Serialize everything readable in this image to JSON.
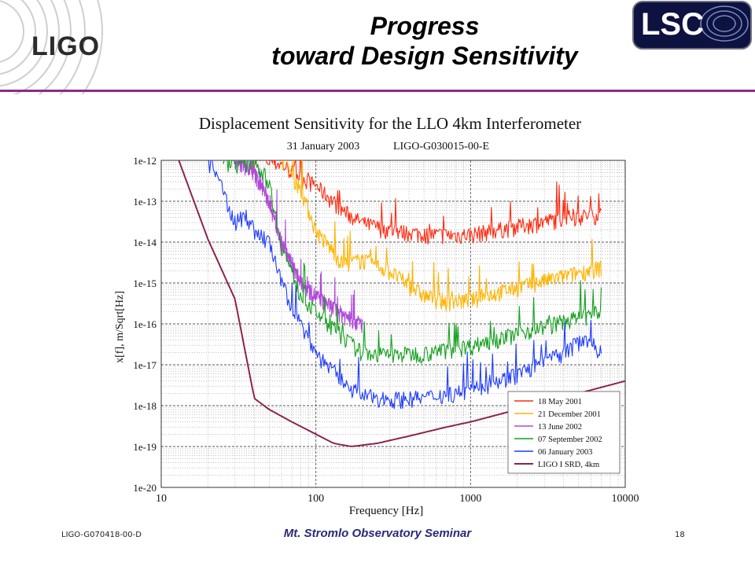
{
  "header": {
    "logo_left": "LIGO",
    "logo_right": "LSC",
    "title_line1": "Progress",
    "title_line2": "toward Design Sensitivity"
  },
  "footer": {
    "doc_id": "LIGO-G070418-00-D",
    "seminar": "Mt. Stromlo Observatory Seminar",
    "page": "18"
  },
  "colors": {
    "title_rule": "#8d2a8d",
    "lsc_bg": "#0d1240"
  },
  "chart_data": {
    "type": "line",
    "title": "Displacement Sensitivity for the LLO 4km Interferometer",
    "subtitle_date": "31 January 2003",
    "subtitle_id": "LIGO-G030015-00-E",
    "xlabel": "Frequency [Hz]",
    "ylabel": "x[f], m/Sqrt[Hz]",
    "x_scale": "log",
    "y_scale": "log",
    "xlim": [
      10,
      10000
    ],
    "ylim": [
      1e-20,
      1e-12
    ],
    "x_ticks": [
      "10",
      "100",
      "1000",
      "10000"
    ],
    "y_ticks": [
      "1e-12",
      "1e-13",
      "1e-14",
      "1e-15",
      "1e-16",
      "1e-17",
      "1e-18",
      "1e-19",
      "1e-20"
    ],
    "grid": true,
    "legend_position": "bottom-right",
    "series": [
      {
        "name": "18 May 2001",
        "color": "#ff2a10",
        "noisy": true,
        "x": [
          40,
          60,
          80,
          100,
          150,
          200,
          300,
          500,
          800,
          1000,
          2000,
          4000,
          7000
        ],
        "y": [
          1.2e-12,
          8e-13,
          4e-13,
          2.5e-13,
          6e-14,
          3e-14,
          2e-14,
          1.6e-14,
          1.5e-14,
          1.6e-14,
          2.5e-14,
          4e-14,
          5e-14
        ]
      },
      {
        "name": "21 December 2001",
        "color": "#ffb400",
        "noisy": true,
        "x": [
          60,
          80,
          100,
          150,
          200,
          300,
          500,
          700,
          1000,
          2000,
          4000,
          7000
        ],
        "y": [
          1.2e-12,
          2e-13,
          2e-14,
          3e-15,
          3.8e-15,
          2e-15,
          5e-16,
          3.6e-16,
          4e-16,
          8e-16,
          1.5e-15,
          2.5e-15
        ]
      },
      {
        "name": "13 June 2002",
        "color": "#b04ad8",
        "noisy": true,
        "x": [
          30,
          40,
          50,
          60,
          80,
          100,
          130,
          160,
          200
        ],
        "y": [
          1e-12,
          5e-13,
          1e-13,
          1e-14,
          1e-15,
          5e-16,
          2.5e-16,
          1.5e-16,
          1e-16
        ]
      },
      {
        "name": "07 September 2002",
        "color": "#14a01e",
        "noisy": true,
        "x": [
          25,
          35,
          40,
          50,
          60,
          80,
          100,
          150,
          200,
          300,
          500,
          1000,
          2000,
          4000,
          7000
        ],
        "y": [
          1e-12,
          8e-13,
          1e-12,
          3e-13,
          8e-15,
          5e-16,
          2e-16,
          5e-17,
          2e-17,
          1.8e-17,
          2e-17,
          3e-17,
          6e-17,
          1.2e-16,
          2e-16
        ]
      },
      {
        "name": "06 January 2003",
        "color": "#1e3cff",
        "noisy": true,
        "x": [
          20,
          25,
          30,
          35,
          40,
          50,
          60,
          80,
          100,
          150,
          200,
          300,
          500,
          1000,
          2000,
          4000,
          5500,
          7000
        ],
        "y": [
          1e-12,
          2e-13,
          3e-14,
          5e-14,
          2e-14,
          1e-14,
          1e-15,
          1e-16,
          2e-17,
          4e-18,
          1.8e-18,
          1.5e-18,
          1.6e-18,
          2.5e-18,
          6e-18,
          2e-17,
          5e-17,
          2e-17
        ]
      },
      {
        "name": "LIGO I SRD, 4km",
        "color": "#8b2450",
        "noisy": false,
        "x": [
          13,
          20,
          30,
          40,
          50,
          70,
          100,
          130,
          170,
          250,
          400,
          700,
          1000,
          2000,
          4000,
          7000,
          10000
        ],
        "y": [
          1e-12,
          1.2e-14,
          4e-16,
          1.5e-18,
          8e-19,
          4e-19,
          2e-19,
          1.2e-19,
          1e-19,
          1.2e-19,
          1.8e-19,
          3e-19,
          4e-19,
          8e-19,
          1.6e-18,
          2.8e-18,
          4e-18
        ]
      }
    ]
  }
}
